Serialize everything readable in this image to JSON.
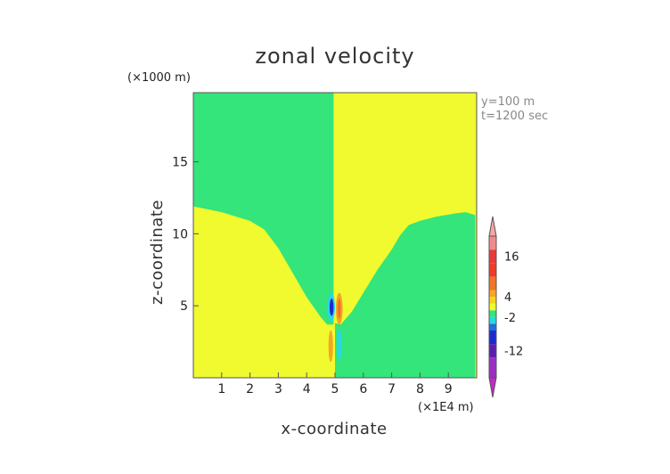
{
  "chart_data": {
    "type": "heatmap",
    "title": "zonal velocity",
    "xlabel": "x-coordinate",
    "ylabel": "z-coordinate",
    "x_unit": "(×1E4 m)",
    "y_unit": "(×1000 m)",
    "info": [
      "y=100 m",
      "t=1200 sec"
    ],
    "xlim": [
      0,
      10
    ],
    "ylim": [
      0,
      19.8
    ],
    "x_ticks": [
      1,
      2,
      3,
      4,
      5,
      6,
      7,
      8,
      9
    ],
    "y_ticks": [
      5,
      10,
      15
    ],
    "background_regions": {
      "left_upper": {
        "value": "-2 to 0",
        "color": "#33e57a"
      },
      "left_lower": {
        "value": "0 to 2",
        "color": "#f0fa2e"
      },
      "right_upper": {
        "value": "0 to 2",
        "color": "#f0fa2e"
      },
      "right_lower": {
        "value": "-2 to 0",
        "color": "#33e57a"
      }
    },
    "interface_left": [
      [
        0,
        11.9
      ],
      [
        1.0,
        11.5
      ],
      [
        2.0,
        10.9
      ],
      [
        2.5,
        10.3
      ],
      [
        3.0,
        9.0
      ],
      [
        3.5,
        7.3
      ],
      [
        4.0,
        5.6
      ],
      [
        4.5,
        4.2
      ],
      [
        4.72,
        3.7
      ],
      [
        4.95,
        3.7
      ],
      [
        4.95,
        19.8
      ]
    ],
    "interface_right": [
      [
        5.0,
        19.8
      ],
      [
        5.0,
        3.8
      ],
      [
        5.2,
        3.7
      ],
      [
        5.6,
        4.6
      ],
      [
        6.0,
        5.9
      ],
      [
        6.5,
        7.5
      ],
      [
        7.0,
        8.9
      ],
      [
        7.3,
        9.9
      ],
      [
        7.6,
        10.6
      ],
      [
        8.0,
        10.9
      ],
      [
        8.6,
        11.2
      ],
      [
        9.2,
        11.4
      ],
      [
        9.6,
        11.5
      ],
      [
        9.95,
        11.3
      ],
      [
        9.95,
        0
      ]
    ],
    "features": [
      {
        "type": "ellipse",
        "x": 4.87,
        "z": 4.9,
        "rx": 0.13,
        "rz": 1.0,
        "value": -4,
        "color": "#2ad6e8"
      },
      {
        "type": "ellipse",
        "x": 4.88,
        "z": 4.9,
        "rx": 0.07,
        "rz": 0.6,
        "value": -12,
        "color": "#1a2ad0"
      },
      {
        "type": "ellipse",
        "x": 5.15,
        "z": 4.8,
        "rx": 0.12,
        "rz": 1.1,
        "value": 4,
        "color": "#f5a623"
      },
      {
        "type": "ellipse",
        "x": 5.15,
        "z": 4.8,
        "rx": 0.06,
        "rz": 0.7,
        "value": 6,
        "color": "#f2732a"
      },
      {
        "type": "ellipse",
        "x": 4.85,
        "z": 2.2,
        "rx": 0.08,
        "rz": 1.1,
        "value": 4,
        "color": "#f5a623"
      },
      {
        "type": "ellipse",
        "x": 5.15,
        "z": 2.3,
        "rx": 0.08,
        "rz": 1.1,
        "value": -2,
        "color": "#2ad6e8"
      }
    ],
    "colorbar": {
      "labels": [
        "16",
        "4",
        "-2",
        "-12"
      ],
      "label_values": [
        16,
        4,
        -2,
        -12
      ],
      "range": [
        -20,
        22
      ],
      "bands": [
        {
          "from": -20,
          "to": -14,
          "color": "#9a2fc4"
        },
        {
          "from": -14,
          "to": -10,
          "color": "#5a1fb0"
        },
        {
          "from": -10,
          "to": -6,
          "color": "#1a2ad0"
        },
        {
          "from": -6,
          "to": -4,
          "color": "#1f6fd8"
        },
        {
          "from": -4,
          "to": -2,
          "color": "#2ad6e8"
        },
        {
          "from": -2,
          "to": 0,
          "color": "#33e57a"
        },
        {
          "from": 0,
          "to": 2,
          "color": "#f0fa2e"
        },
        {
          "from": 2,
          "to": 4,
          "color": "#f7d419"
        },
        {
          "from": 4,
          "to": 6,
          "color": "#f5a623"
        },
        {
          "from": 6,
          "to": 10,
          "color": "#f2732a"
        },
        {
          "from": 10,
          "to": 14,
          "color": "#ef3b2a"
        },
        {
          "from": 14,
          "to": 18,
          "color": "#e83a3a"
        },
        {
          "from": 18,
          "to": 22,
          "color": "#f28a8a"
        }
      ],
      "upper_arrow_color": "#f7a5a5",
      "lower_arrow_color": "#c02ac8"
    }
  }
}
